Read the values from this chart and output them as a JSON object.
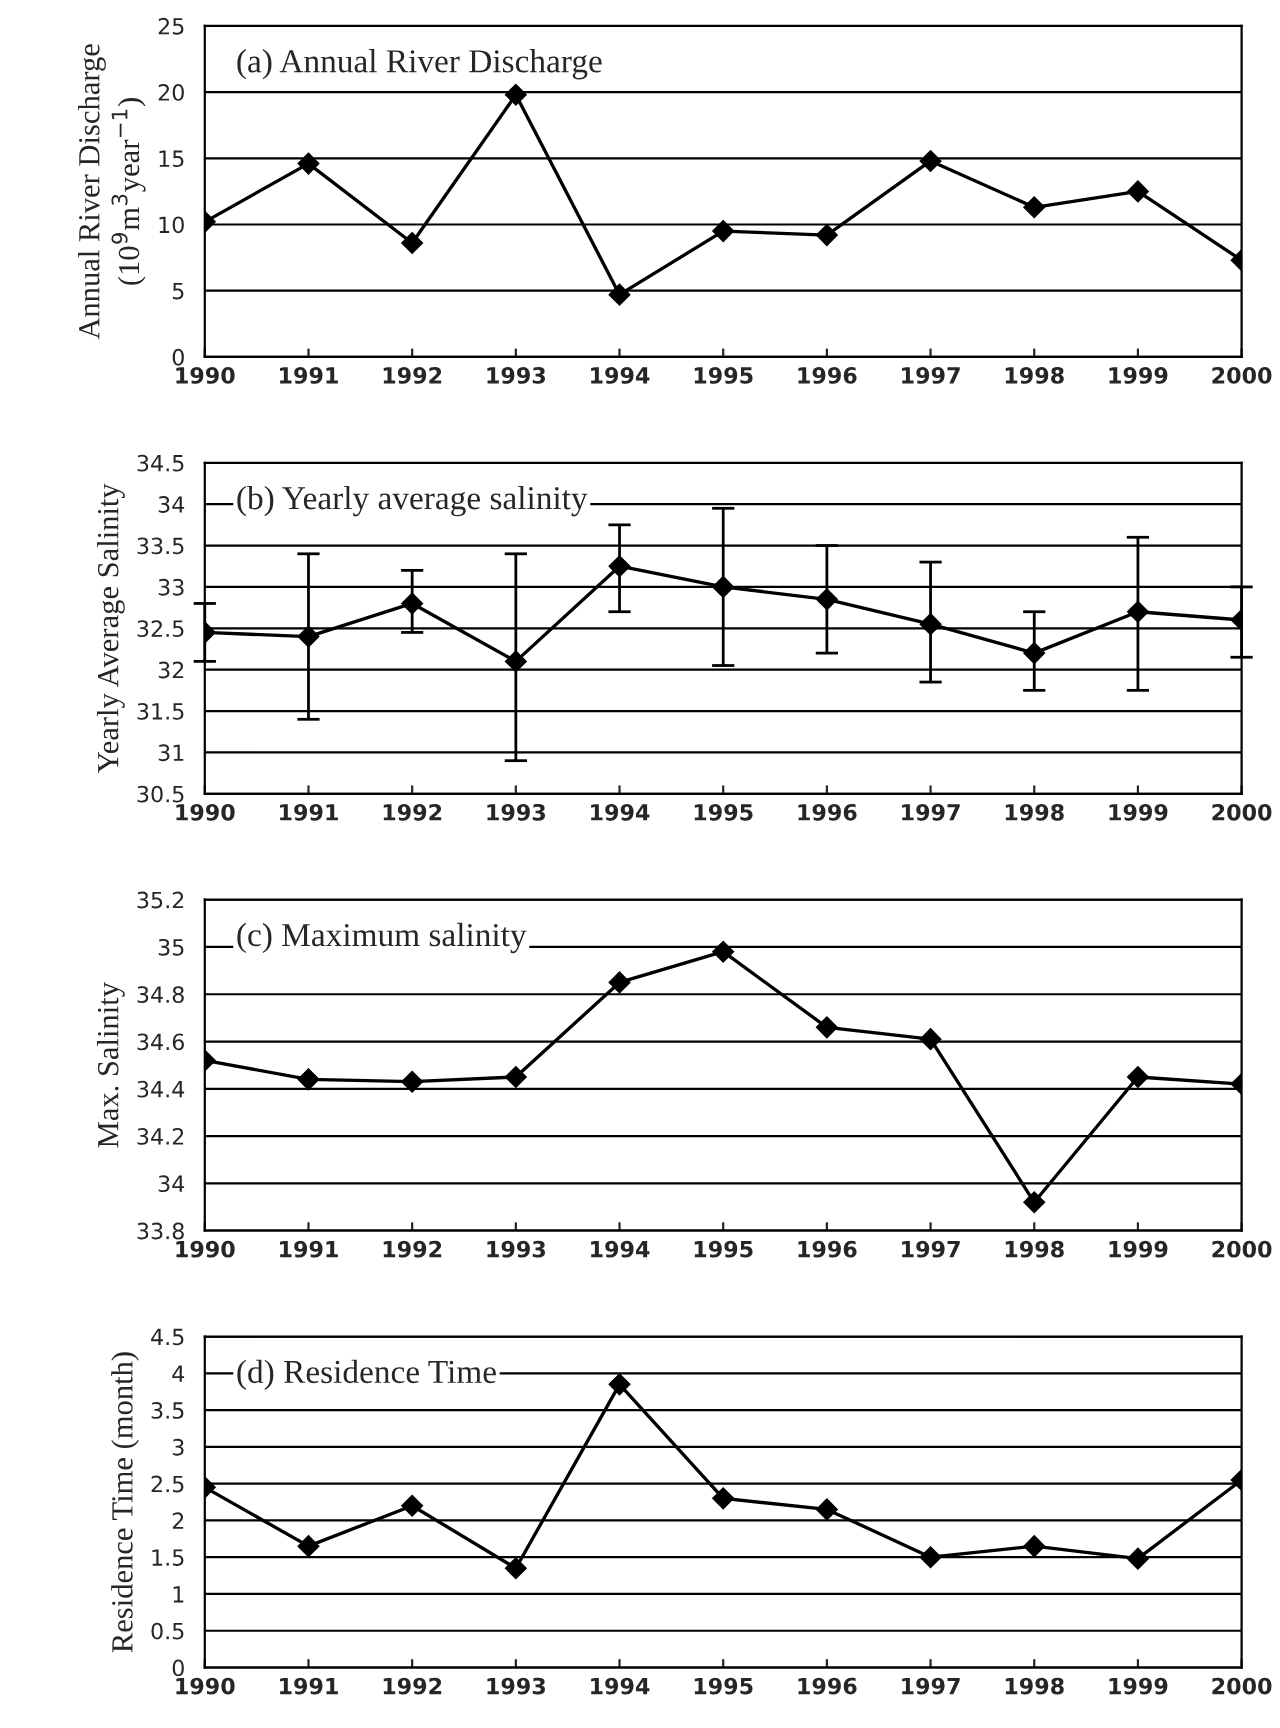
{
  "chart_data": [
    {
      "type": "line",
      "title": "(a) Annual River Discharge",
      "ylabel": "Annual River Discharge\n(10$^{9}$m$^{3}$year$^{−1}$)",
      "x": [
        1990,
        1991,
        1992,
        1993,
        1994,
        1995,
        1996,
        1997,
        1998,
        1999,
        2000
      ],
      "series": [
        {
          "color": "#000000",
          "values": [
            10.2,
            14.6,
            8.6,
            19.8,
            4.7,
            9.5,
            9.2,
            14.8,
            11.3,
            12.5,
            7.3
          ]
        }
      ],
      "xlim": [
        1990,
        2000
      ],
      "xticks": [
        1990,
        1991,
        1992,
        1993,
        1994,
        1995,
        1996,
        1997,
        1998,
        1999,
        2000
      ],
      "ylim": [
        0,
        25
      ],
      "yticks": [
        0,
        5,
        10,
        15,
        20,
        25
      ],
      "grid": "y",
      "marker": "diamond",
      "line_style": "solid"
    },
    {
      "type": "line",
      "title": "(b) Yearly average salinity",
      "ylabel": "Yearly Average Salinity",
      "x": [
        1990,
        1991,
        1992,
        1993,
        1994,
        1995,
        1996,
        1997,
        1998,
        1999,
        2000
      ],
      "series": [
        {
          "color": "#000000",
          "values": [
            32.45,
            32.4,
            32.8,
            32.1,
            33.25,
            33.0,
            32.85,
            32.55,
            32.2,
            32.7,
            32.6
          ],
          "errors": [
            [
              32.1,
              32.8
            ],
            [
              31.4,
              33.4
            ],
            [
              32.45,
              33.2
            ],
            [
              30.9,
              33.4
            ],
            [
              32.7,
              33.75
            ],
            [
              32.05,
              33.95
            ],
            [
              32.2,
              33.5
            ],
            [
              31.85,
              33.3
            ],
            [
              31.75,
              32.7
            ],
            [
              31.75,
              33.6
            ],
            [
              32.15,
              33.0
            ]
          ]
        }
      ],
      "xlim": [
        1990,
        2000
      ],
      "xticks": [
        1990,
        1991,
        1992,
        1993,
        1994,
        1995,
        1996,
        1997,
        1998,
        1999,
        2000
      ],
      "ylim": [
        30.5,
        34.5
      ],
      "yticks": [
        30.5,
        31,
        31.5,
        32,
        32.5,
        33,
        33.5,
        34,
        34.5
      ],
      "grid": "y",
      "marker": "diamond",
      "line_style": "solid"
    },
    {
      "type": "line",
      "title": "(c) Maximum salinity",
      "ylabel": "Max. Salinity",
      "x": [
        1990,
        1991,
        1992,
        1993,
        1994,
        1995,
        1996,
        1997,
        1998,
        1999,
        2000
      ],
      "series": [
        {
          "color": "#000000",
          "values": [
            34.52,
            34.44,
            34.43,
            34.45,
            34.85,
            34.98,
            34.66,
            34.61,
            33.92,
            34.45,
            34.42
          ]
        }
      ],
      "xlim": [
        1990,
        2000
      ],
      "xticks": [
        1990,
        1991,
        1992,
        1993,
        1994,
        1995,
        1996,
        1997,
        1998,
        1999,
        2000
      ],
      "ylim": [
        33.8,
        35.2
      ],
      "yticks": [
        33.8,
        34,
        34.2,
        34.4,
        34.6,
        34.8,
        35,
        35.2
      ],
      "grid": "y",
      "marker": "diamond",
      "line_style": "solid"
    },
    {
      "type": "line",
      "title": "(d) Residence Time",
      "ylabel": "Residence Time (month)",
      "x": [
        1990,
        1991,
        1992,
        1993,
        1994,
        1995,
        1996,
        1997,
        1998,
        1999,
        2000
      ],
      "series": [
        {
          "color": "#000000",
          "values": [
            2.45,
            1.65,
            2.2,
            1.35,
            3.85,
            2.3,
            2.15,
            1.5,
            1.65,
            1.48,
            2.55
          ]
        }
      ],
      "xlim": [
        1990,
        2000
      ],
      "xticks": [
        1990,
        1991,
        1992,
        1993,
        1994,
        1995,
        1996,
        1997,
        1998,
        1999,
        2000
      ],
      "ylim": [
        0,
        4.5
      ],
      "yticks": [
        0,
        0.5,
        1,
        1.5,
        2,
        2.5,
        3,
        3.5,
        4,
        4.5
      ],
      "grid": "y",
      "marker": "diamond",
      "line_style": "solid"
    }
  ]
}
